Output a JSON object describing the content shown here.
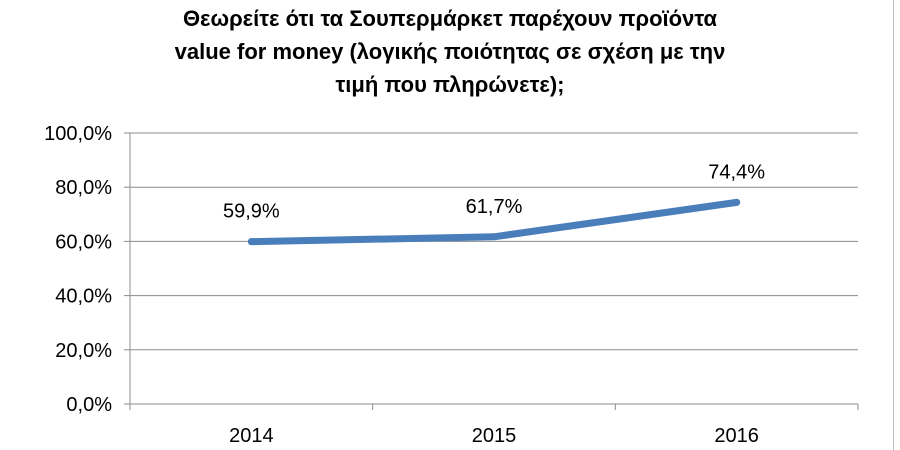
{
  "chart_data": {
    "type": "line",
    "title_lines": [
      "Θεωρείτε ότι τα Σουπερμάρκετ παρέχουν προϊόντα",
      "value for money (λογικής ποιότητας σε σχέση με την",
      "τιμή που πληρώνετε);"
    ],
    "categories": [
      "2014",
      "2015",
      "2016"
    ],
    "series": [
      {
        "values": [
          59.9,
          61.7,
          74.4
        ],
        "labels": [
          "59,9%",
          "61,7%",
          "74,4%"
        ]
      }
    ],
    "ylim": [
      0,
      100
    ],
    "yticks": [
      "0,0%",
      "20,0%",
      "40,0%",
      "60,0%",
      "80,0%",
      "100,0%"
    ],
    "grid": true,
    "colors": {
      "line": "#4a7ebb",
      "grid": "#8c8c8c",
      "axis": "#8c8c8c"
    }
  }
}
